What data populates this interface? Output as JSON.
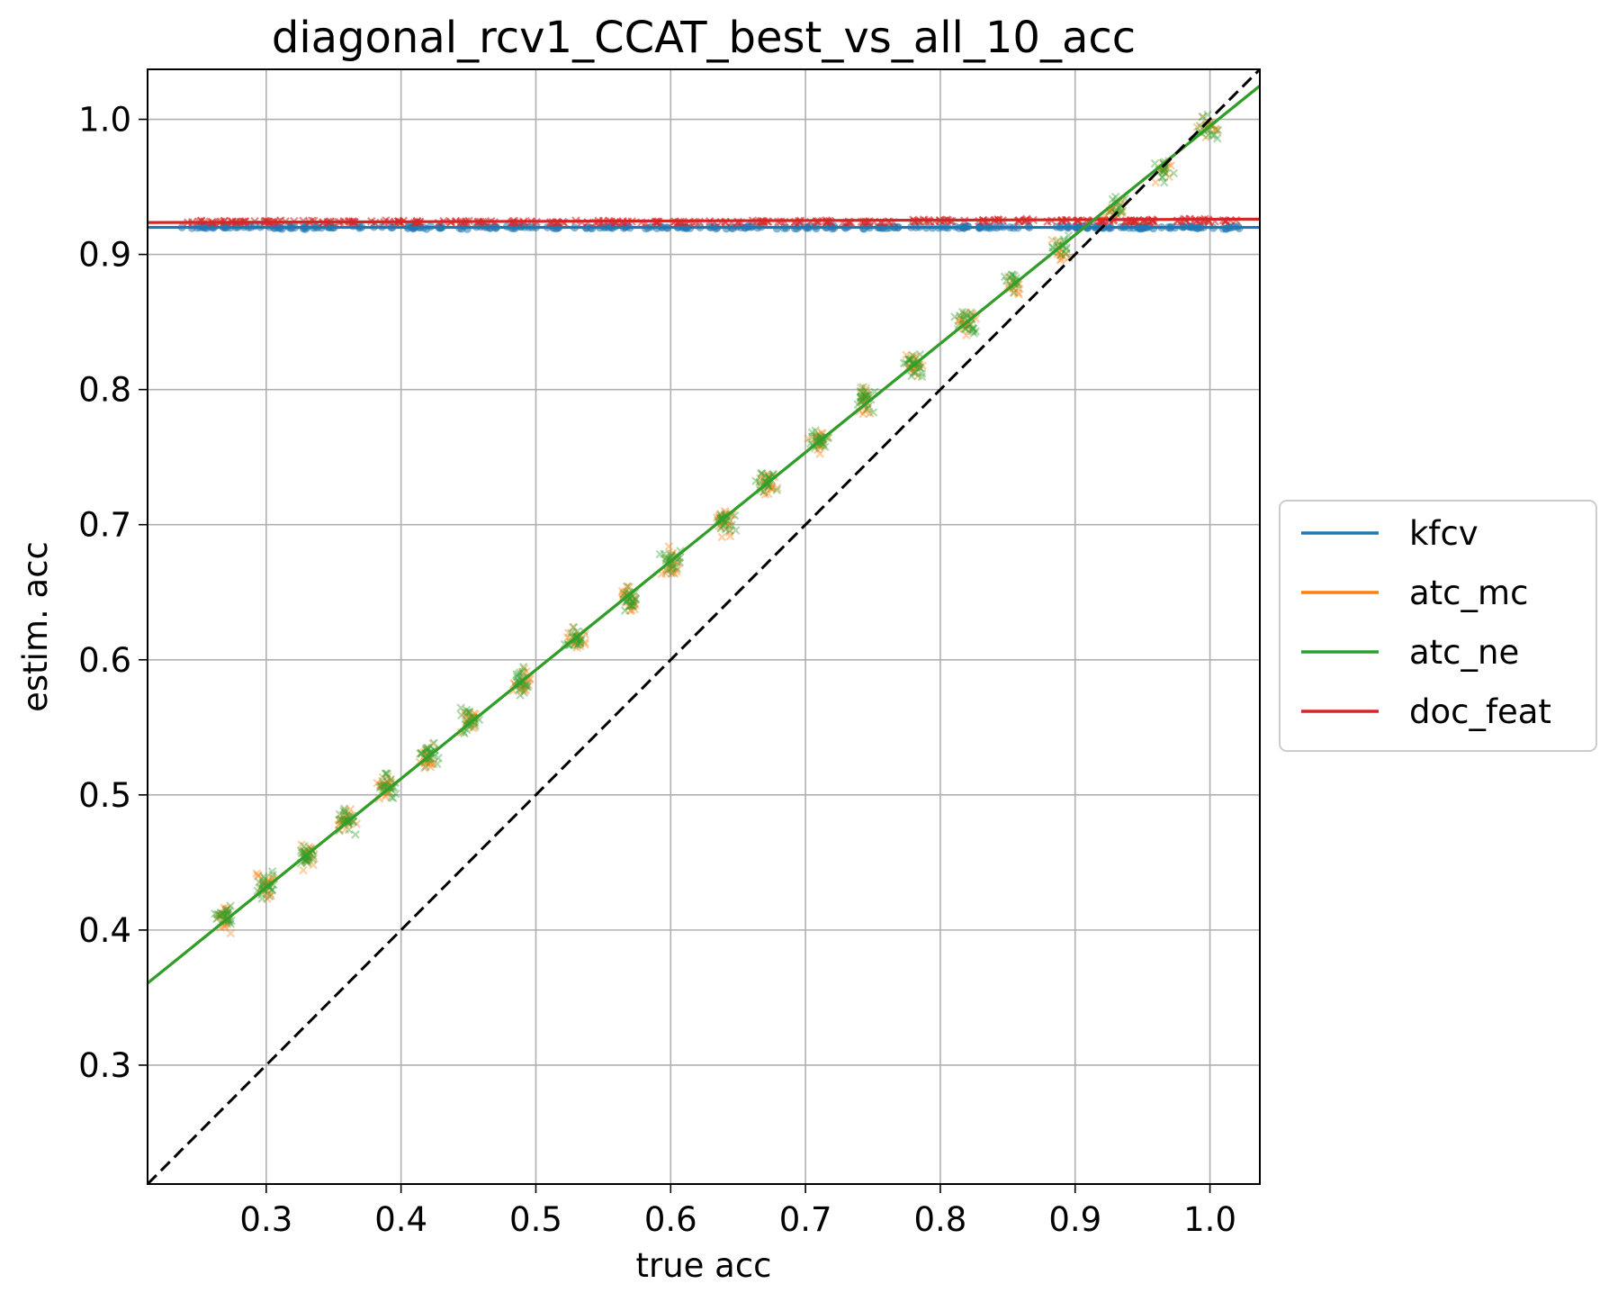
{
  "chart_data": {
    "type": "scatter",
    "title": "diagonal_rcv1_CCAT_best_vs_all_10_acc",
    "xlabel": "true acc",
    "ylabel": "estim. acc",
    "xlim": [
      0.212,
      1.037
    ],
    "ylim": [
      0.212,
      1.037
    ],
    "xticks": [
      "0.3",
      "0.4",
      "0.5",
      "0.6",
      "0.7",
      "0.8",
      "0.9",
      "1.0"
    ],
    "yticks": [
      "0.3",
      "0.4",
      "0.5",
      "0.6",
      "0.7",
      "0.8",
      "0.9",
      "1.0"
    ],
    "grid": true,
    "legend_position": "center right, outside plot",
    "diagonal_reference": {
      "style": "dashed",
      "color": "#000000",
      "from": [
        0.212,
        0.212
      ],
      "to": [
        1.037,
        1.037
      ]
    },
    "series": [
      {
        "name": "kfcv",
        "color": "#1f77b4",
        "marker": "circle",
        "fit_line": {
          "slope": 0.0,
          "intercept": 0.92
        },
        "x_range": [
          0.25,
          1.0
        ],
        "points": [
          [
            0.26,
            0.92
          ],
          [
            0.3,
            0.92
          ],
          [
            0.35,
            0.92
          ],
          [
            0.4,
            0.92
          ],
          [
            0.45,
            0.92
          ],
          [
            0.5,
            0.92
          ],
          [
            0.55,
            0.92
          ],
          [
            0.6,
            0.92
          ],
          [
            0.65,
            0.92
          ],
          [
            0.7,
            0.92
          ],
          [
            0.75,
            0.92
          ],
          [
            0.8,
            0.92
          ],
          [
            0.85,
            0.92
          ],
          [
            0.9,
            0.92
          ],
          [
            0.93,
            0.92
          ],
          [
            0.965,
            0.92
          ],
          [
            1.0,
            0.92
          ]
        ]
      },
      {
        "name": "atc_mc",
        "color": "#ff7f0e",
        "marker": "x",
        "fit_line": {
          "slope": 0.805,
          "intercept": 0.19
        },
        "points": [
          [
            0.27,
            0.41
          ],
          [
            0.3,
            0.432
          ],
          [
            0.33,
            0.455
          ],
          [
            0.36,
            0.48
          ],
          [
            0.39,
            0.505
          ],
          [
            0.42,
            0.528
          ],
          [
            0.45,
            0.555
          ],
          [
            0.49,
            0.583
          ],
          [
            0.53,
            0.615
          ],
          [
            0.57,
            0.645
          ],
          [
            0.6,
            0.672
          ],
          [
            0.64,
            0.702
          ],
          [
            0.67,
            0.73
          ],
          [
            0.71,
            0.762
          ],
          [
            0.745,
            0.792
          ],
          [
            0.78,
            0.818
          ],
          [
            0.82,
            0.848
          ],
          [
            0.855,
            0.876
          ],
          [
            0.89,
            0.903
          ],
          [
            0.93,
            0.935
          ],
          [
            0.965,
            0.963
          ],
          [
            1.0,
            0.992
          ]
        ]
      },
      {
        "name": "atc_ne",
        "color": "#2ca02c",
        "marker": "x",
        "fit_line": {
          "slope": 0.805,
          "intercept": 0.19
        },
        "points": [
          [
            0.27,
            0.412
          ],
          [
            0.3,
            0.433
          ],
          [
            0.33,
            0.456
          ],
          [
            0.36,
            0.481
          ],
          [
            0.39,
            0.506
          ],
          [
            0.42,
            0.529
          ],
          [
            0.45,
            0.556
          ],
          [
            0.49,
            0.584
          ],
          [
            0.53,
            0.616
          ],
          [
            0.57,
            0.646
          ],
          [
            0.6,
            0.673
          ],
          [
            0.64,
            0.703
          ],
          [
            0.67,
            0.731
          ],
          [
            0.71,
            0.763
          ],
          [
            0.745,
            0.793
          ],
          [
            0.78,
            0.819
          ],
          [
            0.82,
            0.849
          ],
          [
            0.855,
            0.877
          ],
          [
            0.89,
            0.904
          ],
          [
            0.93,
            0.936
          ],
          [
            0.965,
            0.964
          ],
          [
            1.0,
            0.993
          ]
        ]
      },
      {
        "name": "doc_feat",
        "color": "#d62728",
        "marker": "x",
        "fit_line": {
          "slope": 0.003,
          "intercept": 0.923
        },
        "x_range": [
          0.25,
          1.0
        ],
        "points": [
          [
            0.26,
            0.924
          ],
          [
            0.3,
            0.924
          ],
          [
            0.35,
            0.924
          ],
          [
            0.4,
            0.924
          ],
          [
            0.45,
            0.924
          ],
          [
            0.5,
            0.924
          ],
          [
            0.55,
            0.924
          ],
          [
            0.6,
            0.924
          ],
          [
            0.65,
            0.924
          ],
          [
            0.7,
            0.924
          ],
          [
            0.75,
            0.924
          ],
          [
            0.8,
            0.925
          ],
          [
            0.85,
            0.925
          ],
          [
            0.9,
            0.925
          ],
          [
            0.93,
            0.925
          ],
          [
            0.965,
            0.925
          ],
          [
            1.0,
            0.925
          ]
        ]
      }
    ]
  }
}
